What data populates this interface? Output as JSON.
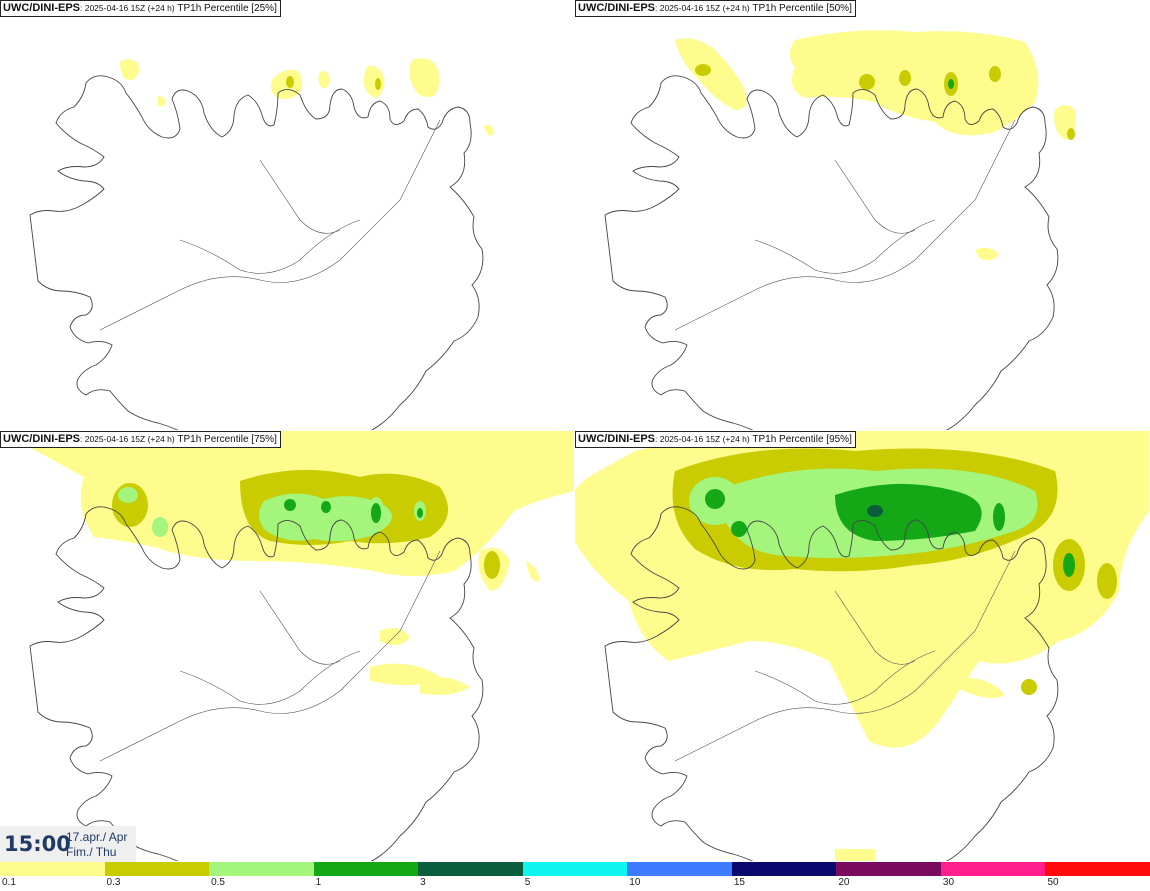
{
  "panels": [
    {
      "model": "UWC/DINI-EPS",
      "meta": ": 2025-04-16 15Z (+24 h)",
      "variable": "TP1h Percentile [25%]"
    },
    {
      "model": "UWC/DINI-EPS",
      "meta": ": 2025-04-16 15Z (+24 h)",
      "variable": "TP1h Percentile [50%]"
    },
    {
      "model": "UWC/DINI-EPS",
      "meta": ": 2025-04-16 15Z (+24 h)",
      "variable": "TP1h Percentile [75%]"
    },
    {
      "model": "UWC/DINI-EPS",
      "meta": ": 2025-04-16 15Z (+24 h)",
      "variable": "TP1h Percentile [95%]"
    }
  ],
  "time": {
    "clock": "15:00",
    "date_line1": "17.apr./ Apr",
    "date_line2": "Fim./ Thu"
  },
  "legend": {
    "ticks": [
      "0.1",
      "0.3",
      "0.5",
      "1",
      "3",
      "5",
      "10",
      "15",
      "20",
      "30",
      "50"
    ],
    "colors": [
      "#fffc8e",
      "#c8cc00",
      "#a3f57b",
      "#14a817",
      "#0b5e3d",
      "#10f5f0",
      "#3d7cff",
      "#0a0a6e",
      "#7a0a5e",
      "#ff1e8c",
      "#ff0b0b"
    ]
  },
  "colors": {
    "precip_low": "#fffc8e",
    "precip_mid": "#c8cc00",
    "precip_light_green": "#a3f57b",
    "precip_green": "#14a817",
    "coastline": "#444444",
    "roads": "#555555"
  }
}
